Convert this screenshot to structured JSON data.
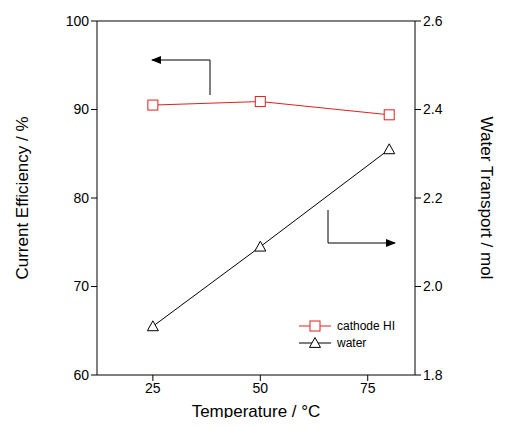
{
  "chart_data": {
    "type": "line",
    "x_label": "Temperature / °C",
    "y_label": "Current Efficiency / %",
    "y2_label": "Water Transport / mol",
    "x": [
      25,
      50,
      80
    ],
    "xlim": [
      12,
      86
    ],
    "xticks": [
      25,
      50,
      75
    ],
    "ylim": [
      60,
      100
    ],
    "yticks": [
      60,
      70,
      80,
      90,
      100
    ],
    "y2lim": [
      1.8,
      2.6
    ],
    "y2ticks": [
      1.8,
      {
        "value": 2,
        "label": "2.0"
      },
      2.2,
      2.4,
      2.6
    ],
    "series": [
      {
        "name": "cathode HI",
        "color": "#e02020",
        "marker": "square",
        "values": [
          90.5,
          90.9,
          89.4
        ]
      },
      {
        "name": "water",
        "color": "#000000",
        "marker": "triangle",
        "axis": "y2",
        "values": [
          1.91,
          2.09,
          2.31
        ]
      }
    ],
    "legend": "lower right",
    "grid": false
  }
}
